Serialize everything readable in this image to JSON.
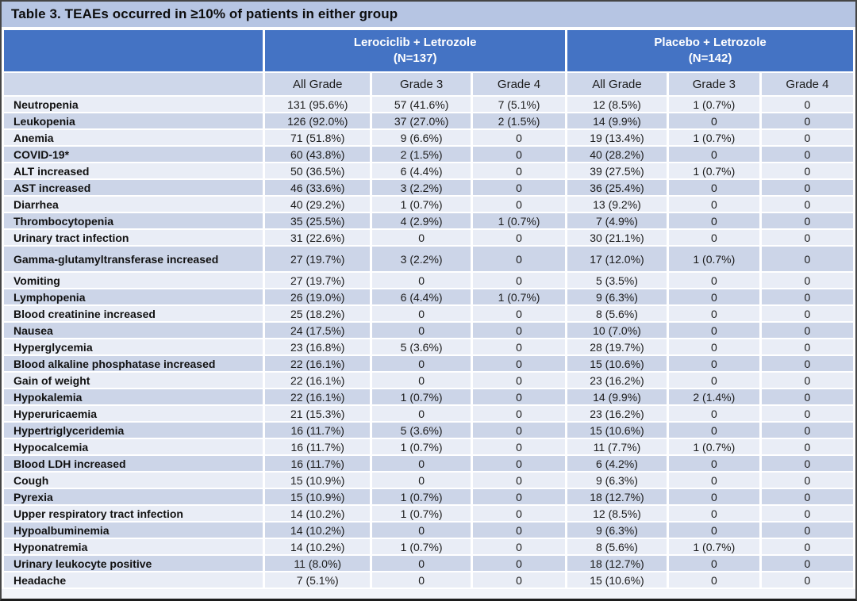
{
  "title": "Table 3. TEAEs occurred in ≥10% of patients in either group",
  "table": {
    "groups": [
      {
        "label": "Lerociclib + Letrozole",
        "n_label": "(N=137)"
      },
      {
        "label": "Placebo + Letrozole",
        "n_label": "(N=142)"
      }
    ],
    "subheaders": [
      "All Grade",
      "Grade 3",
      "Grade 4"
    ],
    "rows": [
      {
        "name": "Neutropenia",
        "cells": [
          "131 (95.6%)",
          "57 (41.6%)",
          "7 (5.1%)",
          "12 (8.5%)",
          "1 (0.7%)",
          "0"
        ]
      },
      {
        "name": "Leukopenia",
        "cells": [
          "126 (92.0%)",
          "37 (27.0%)",
          "2 (1.5%)",
          "14 (9.9%)",
          "0",
          "0"
        ]
      },
      {
        "name": "Anemia",
        "cells": [
          "71 (51.8%)",
          "9 (6.6%)",
          "0",
          "19 (13.4%)",
          "1 (0.7%)",
          "0"
        ]
      },
      {
        "name": "COVID-19*",
        "cells": [
          "60 (43.8%)",
          "2 (1.5%)",
          "0",
          "40 (28.2%)",
          "0",
          "0"
        ]
      },
      {
        "name": "ALT increased",
        "cells": [
          "50 (36.5%)",
          "6 (4.4%)",
          "0",
          "39 (27.5%)",
          "1 (0.7%)",
          "0"
        ]
      },
      {
        "name": "AST increased",
        "cells": [
          "46 (33.6%)",
          "3 (2.2%)",
          "0",
          "36 (25.4%)",
          "0",
          "0"
        ]
      },
      {
        "name": "Diarrhea",
        "cells": [
          "40 (29.2%)",
          "1 (0.7%)",
          "0",
          "13 (9.2%)",
          "0",
          "0"
        ]
      },
      {
        "name": "Thrombocytopenia",
        "cells": [
          "35 (25.5%)",
          "4 (2.9%)",
          "1 (0.7%)",
          "7 (4.9%)",
          "0",
          "0"
        ]
      },
      {
        "name": "Urinary tract infection",
        "cells": [
          "31 (22.6%)",
          "0",
          "0",
          "30 (21.1%)",
          "0",
          "0"
        ]
      },
      {
        "name": "Gamma-glutamyltransferase increased",
        "tall": true,
        "cells": [
          "27 (19.7%)",
          "3 (2.2%)",
          "0",
          "17 (12.0%)",
          "1 (0.7%)",
          "0"
        ]
      },
      {
        "name": "Vomiting",
        "cells": [
          "27 (19.7%)",
          "0",
          "0",
          "5 (3.5%)",
          "0",
          "0"
        ]
      },
      {
        "name": "Lymphopenia",
        "cells": [
          "26 (19.0%)",
          "6 (4.4%)",
          "1 (0.7%)",
          "9 (6.3%)",
          "0",
          "0"
        ]
      },
      {
        "name": "Blood creatinine increased",
        "cells": [
          "25 (18.2%)",
          "0",
          "0",
          "8 (5.6%)",
          "0",
          "0"
        ]
      },
      {
        "name": "Nausea",
        "cells": [
          "24 (17.5%)",
          "0",
          "0",
          "10 (7.0%)",
          "0",
          "0"
        ]
      },
      {
        "name": "Hyperglycemia",
        "cells": [
          "23 (16.8%)",
          "5 (3.6%)",
          "0",
          "28 (19.7%)",
          "0",
          "0"
        ]
      },
      {
        "name": "Blood alkaline phosphatase increased",
        "cells": [
          "22 (16.1%)",
          "0",
          "0",
          "15 (10.6%)",
          "0",
          "0"
        ]
      },
      {
        "name": "Gain of weight",
        "cells": [
          "22 (16.1%)",
          "0",
          "0",
          "23 (16.2%)",
          "0",
          "0"
        ]
      },
      {
        "name": "Hypokalemia",
        "cells": [
          "22 (16.1%)",
          "1 (0.7%)",
          "0",
          "14 (9.9%)",
          "2 (1.4%)",
          "0"
        ]
      },
      {
        "name": "Hyperuricaemia",
        "cells": [
          "21 (15.3%)",
          "0",
          "0",
          "23 (16.2%)",
          "0",
          "0"
        ]
      },
      {
        "name": "Hypertriglyceridemia",
        "cells": [
          "16 (11.7%)",
          "5 (3.6%)",
          "0",
          "15 (10.6%)",
          "0",
          "0"
        ]
      },
      {
        "name": "Hypocalcemia",
        "cells": [
          "16 (11.7%)",
          "1 (0.7%)",
          "0",
          "11 (7.7%)",
          "1 (0.7%)",
          "0"
        ]
      },
      {
        "name": "Blood LDH increased",
        "cells": [
          "16 (11.7%)",
          "0",
          "0",
          "6 (4.2%)",
          "0",
          "0"
        ]
      },
      {
        "name": "Cough",
        "cells": [
          "15 (10.9%)",
          "0",
          "0",
          "9 (6.3%)",
          "0",
          "0"
        ]
      },
      {
        "name": "Pyrexia",
        "cells": [
          "15 (10.9%)",
          "1 (0.7%)",
          "0",
          "18 (12.7%)",
          "0",
          "0"
        ]
      },
      {
        "name": "Upper respiratory tract infection",
        "cells": [
          "14 (10.2%)",
          "1 (0.7%)",
          "0",
          "12 (8.5%)",
          "0",
          "0"
        ]
      },
      {
        "name": "Hypoalbuminemia",
        "cells": [
          "14 (10.2%)",
          "0",
          "0",
          "9 (6.3%)",
          "0",
          "0"
        ]
      },
      {
        "name": "Hyponatremia",
        "cells": [
          "14 (10.2%)",
          "1 (0.7%)",
          "0",
          "8 (5.6%)",
          "1 (0.7%)",
          "0"
        ]
      },
      {
        "name": "Urinary leukocyte positive",
        "cells": [
          "11 (8.0%)",
          "0",
          "0",
          "18 (12.7%)",
          "0",
          "0"
        ]
      },
      {
        "name": "Headache",
        "cells": [
          "7 (5.1%)",
          "0",
          "0",
          "15 (10.6%)",
          "0",
          "0"
        ]
      }
    ]
  },
  "colors": {
    "title_bar_bg": "#b6c5e3",
    "group_header_bg": "#4473c4",
    "group_header_text": "#ffffff",
    "subheader_bg": "#ced7ea",
    "row_light_bg": "#e9edf6",
    "row_shaded_bg": "#ccd5e8",
    "grid_line": "#ffffff",
    "text": "#1a1a1a"
  }
}
